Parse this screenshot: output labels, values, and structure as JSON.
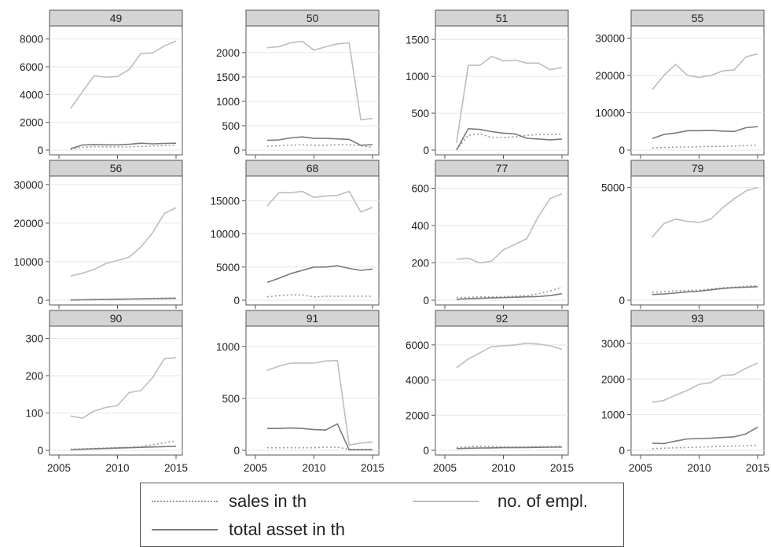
{
  "chart_data": {
    "type": "line",
    "xlim": [
      2005,
      2015
    ],
    "x_ticks": [
      2005,
      2010,
      2015
    ],
    "x": [
      2006,
      2007,
      2008,
      2009,
      2010,
      2011,
      2012,
      2013,
      2014,
      2015
    ],
    "series_meta": [
      {
        "key": "sales",
        "name": "sales in th",
        "color": "#9a9a9a",
        "dash": "2,3"
      },
      {
        "key": "empl",
        "name": "no. of empl.",
        "color": "#bdbdbd",
        "dash": ""
      },
      {
        "key": "assets",
        "name": "total asset in th",
        "color": "#7a7a7a",
        "dash": ""
      }
    ],
    "panels": [
      {
        "title": "49",
        "ylim": [
          0,
          8600
        ],
        "yticks": [
          0,
          2000,
          4000,
          6000,
          8000
        ],
        "series": {
          "sales": [
            50,
            200,
            250,
            230,
            230,
            230,
            260,
            300,
            320,
            350
          ],
          "empl": [
            3000,
            4200,
            5350,
            5250,
            5300,
            5800,
            6950,
            7000,
            7500,
            7850
          ],
          "assets": [
            100,
            370,
            400,
            380,
            380,
            420,
            500,
            450,
            480,
            500
          ]
        }
      },
      {
        "title": "50",
        "ylim": [
          0,
          2450
        ],
        "yticks": [
          0,
          500,
          1000,
          1500,
          2000
        ],
        "series": {
          "sales": [
            80,
            90,
            100,
            110,
            100,
            100,
            110,
            110,
            90,
            50
          ],
          "empl": [
            2100,
            2120,
            2200,
            2230,
            2050,
            2120,
            2180,
            2200,
            620,
            650
          ],
          "assets": [
            200,
            210,
            250,
            270,
            240,
            240,
            230,
            220,
            100,
            110
          ]
        }
      },
      {
        "title": "51",
        "ylim": [
          0,
          1620
        ],
        "yticks": [
          0,
          500,
          1000,
          1500
        ],
        "series": {
          "sales": [
            5,
            200,
            220,
            170,
            170,
            180,
            200,
            210,
            210,
            220
          ],
          "empl": [
            100,
            1150,
            1150,
            1270,
            1210,
            1220,
            1180,
            1180,
            1090,
            1120
          ],
          "assets": [
            0,
            290,
            280,
            250,
            230,
            220,
            160,
            150,
            140,
            150
          ]
        }
      },
      {
        "title": "55",
        "ylim": [
          0,
          32000
        ],
        "yticks": [
          0,
          10000,
          20000,
          30000
        ],
        "series": {
          "sales": [
            600,
            700,
            800,
            800,
            900,
            1000,
            1000,
            1100,
            1200,
            1300
          ],
          "empl": [
            16200,
            20000,
            23000,
            20000,
            19500,
            20000,
            21200,
            21500,
            25000,
            25800
          ],
          "assets": [
            3100,
            4200,
            4600,
            5200,
            5200,
            5300,
            5100,
            5000,
            6000,
            6300
          ]
        }
      },
      {
        "title": "56",
        "ylim": [
          0,
          31000
        ],
        "yticks": [
          0,
          10000,
          20000,
          30000
        ],
        "series": {
          "sales": [
            100,
            150,
            200,
            250,
            300,
            350,
            400,
            450,
            550,
            650
          ],
          "empl": [
            6300,
            7000,
            8000,
            9500,
            10300,
            11200,
            13800,
            17500,
            22500,
            24000
          ],
          "assets": [
            50,
            100,
            150,
            200,
            250,
            300,
            350,
            400,
            450,
            500
          ]
        }
      },
      {
        "title": "68",
        "ylim": [
          0,
          18000
        ],
        "yticks": [
          0,
          5000,
          10000,
          15000
        ],
        "series": {
          "sales": [
            500,
            700,
            800,
            800,
            500,
            600,
            600,
            600,
            600,
            600
          ],
          "empl": [
            14200,
            16200,
            16200,
            16400,
            15500,
            15700,
            15800,
            16400,
            13300,
            14000
          ],
          "assets": [
            2700,
            3300,
            4000,
            4500,
            5000,
            5000,
            5200,
            4800,
            4500,
            4700
          ]
        }
      },
      {
        "title": "77",
        "ylim": [
          0,
          640
        ],
        "yticks": [
          0,
          200,
          400,
          600
        ],
        "series": {
          "sales": [
            15,
            15,
            18,
            18,
            20,
            22,
            25,
            35,
            50,
            70
          ],
          "empl": [
            220,
            225,
            200,
            210,
            270,
            300,
            330,
            450,
            545,
            570
          ],
          "assets": [
            5,
            8,
            10,
            12,
            14,
            16,
            18,
            20,
            25,
            35
          ]
        }
      },
      {
        "title": "79",
        "ylim": [
          0,
          5300
        ],
        "yticks": [
          0,
          5000
        ],
        "series": {
          "sales": [
            350,
            380,
            420,
            430,
            450,
            500,
            550,
            580,
            620,
            650
          ],
          "empl": [
            2800,
            3400,
            3600,
            3500,
            3450,
            3600,
            4100,
            4500,
            4850,
            5000
          ],
          "assets": [
            250,
            280,
            320,
            370,
            400,
            460,
            520,
            560,
            580,
            600
          ]
        }
      },
      {
        "title": "90",
        "ylim": [
          0,
          320
        ],
        "yticks": [
          0,
          100,
          200,
          300
        ],
        "series": {
          "sales": [
            3,
            4,
            5,
            6,
            7,
            8,
            10,
            15,
            20,
            25
          ],
          "empl": [
            92,
            86,
            105,
            115,
            120,
            155,
            160,
            195,
            245,
            248
          ],
          "assets": [
            2,
            3,
            4,
            5,
            6,
            7,
            8,
            9,
            10,
            11
          ]
        }
      },
      {
        "title": "91",
        "ylim": [
          0,
          1150
        ],
        "yticks": [
          0,
          500,
          1000
        ],
        "series": {
          "sales": [
            25,
            25,
            25,
            25,
            25,
            30,
            30,
            10,
            8,
            10
          ],
          "empl": [
            770,
            810,
            840,
            840,
            840,
            860,
            865,
            50,
            70,
            80
          ],
          "assets": [
            210,
            210,
            215,
            210,
            200,
            195,
            255,
            5,
            5,
            5
          ]
        }
      },
      {
        "title": "92",
        "ylim": [
          0,
          6800
        ],
        "yticks": [
          0,
          2000,
          4000,
          6000
        ],
        "series": {
          "sales": [
            150,
            200,
            230,
            220,
            200,
            190,
            200,
            210,
            220,
            230
          ],
          "empl": [
            4700,
            5200,
            5550,
            5900,
            5950,
            6000,
            6100,
            6050,
            5950,
            5750
          ],
          "assets": [
            100,
            120,
            130,
            140,
            150,
            150,
            160,
            170,
            180,
            190
          ]
        }
      },
      {
        "title": "93",
        "ylim": [
          0,
          3350
        ],
        "yticks": [
          0,
          1000,
          2000,
          3000
        ],
        "series": {
          "sales": [
            50,
            60,
            70,
            80,
            90,
            100,
            110,
            120,
            130,
            140
          ],
          "empl": [
            1350,
            1400,
            1550,
            1680,
            1850,
            1900,
            2100,
            2120,
            2300,
            2450
          ],
          "assets": [
            200,
            190,
            260,
            320,
            330,
            340,
            360,
            380,
            460,
            650
          ]
        }
      }
    ]
  },
  "legend": {
    "items": [
      {
        "label": "sales in th"
      },
      {
        "label": "no. of empl."
      },
      {
        "label": "total asset in th"
      }
    ]
  },
  "colors": {
    "panel_header": "#d4d4d4",
    "gridline": "#e6e6e6",
    "frame": "#555555"
  }
}
